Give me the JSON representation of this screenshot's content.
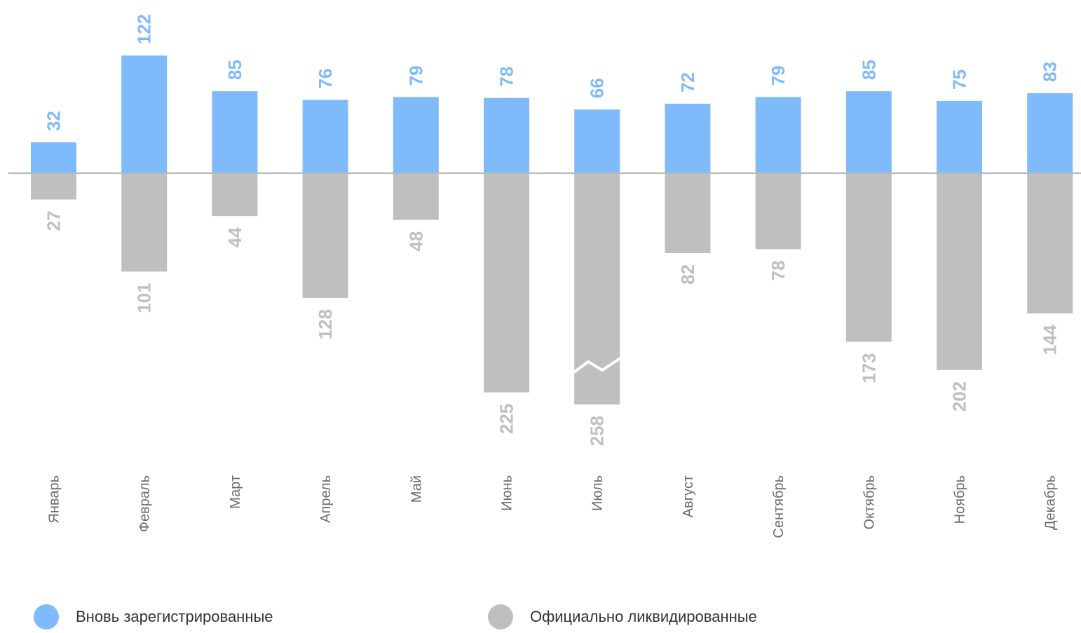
{
  "chart_data": {
    "type": "bar",
    "categories": [
      "Январь",
      "Февраль",
      "Март",
      "Апрель",
      "Май",
      "Июнь",
      "Июль",
      "Август",
      "Сентябрь",
      "Октябрь",
      "Ноябрь",
      "Декабрь"
    ],
    "series": [
      {
        "name": "Вновь зарегистрированные",
        "values": [
          32,
          122,
          85,
          76,
          79,
          78,
          66,
          72,
          79,
          85,
          75,
          83
        ],
        "color": "#7fbbfb"
      },
      {
        "name": "Официально ликвидированные",
        "values": [
          27,
          101,
          44,
          128,
          48,
          225,
          258,
          82,
          78,
          173,
          202,
          144
        ],
        "color": "#bfbfbf"
      }
    ],
    "axis_break": {
      "category": "Июль",
      "series": "Официально ликвидированные"
    },
    "legend_position": "bottom",
    "grid": false
  },
  "legend": {
    "items": [
      {
        "label": "Вновь зарегистрированные",
        "color": "#7fbbfb"
      },
      {
        "label": "Официально ликвидированные",
        "color": "#bfbfbf"
      }
    ]
  }
}
